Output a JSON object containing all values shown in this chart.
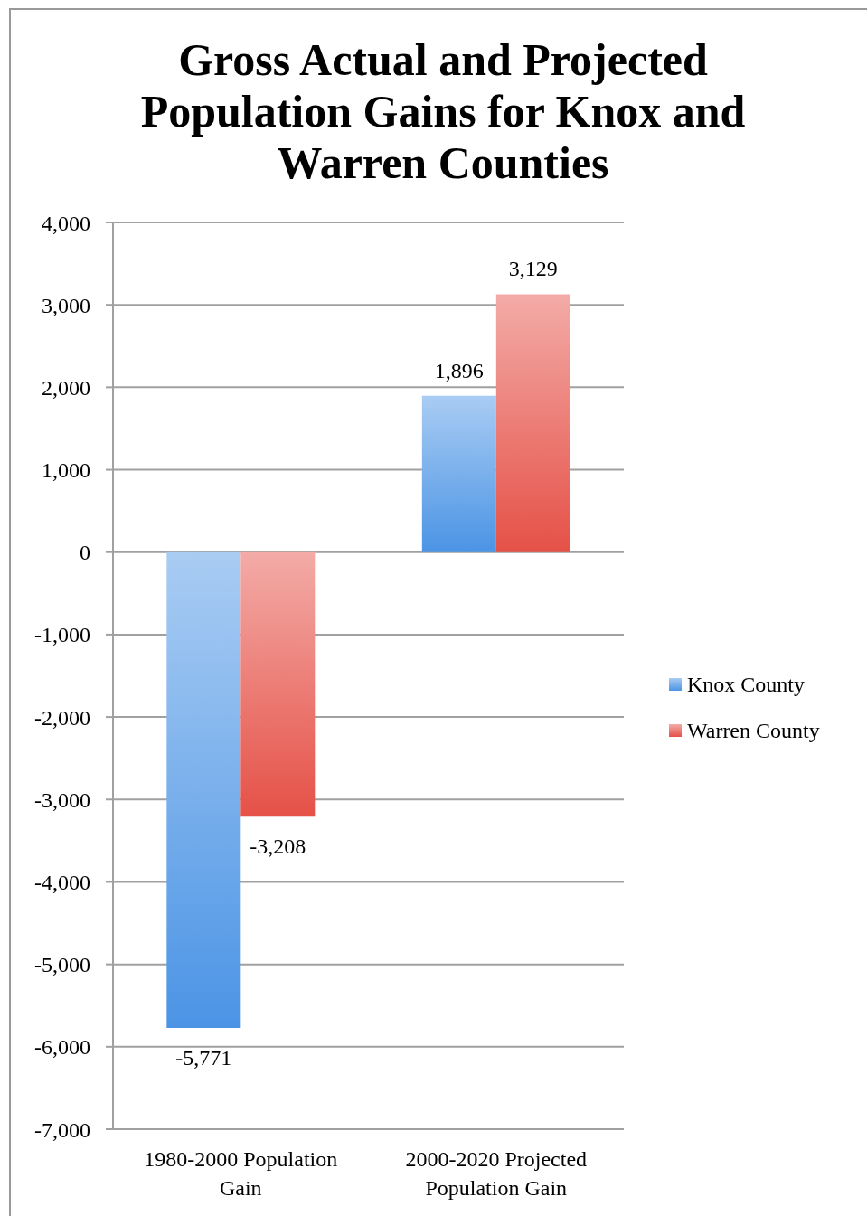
{
  "chart_data": {
    "type": "bar",
    "title": "Gross Actual and Projected Population Gains for Knox and Warren Counties",
    "categories": [
      "1980-2000 Population Gain",
      "2000-2020 Projected Population Gain"
    ],
    "series": [
      {
        "name": "Knox County",
        "color": "#7ab0ec",
        "values": [
          -5771,
          1896
        ],
        "value_labels": [
          "-5,771",
          "1,896"
        ]
      },
      {
        "name": "Warren County",
        "color": "#ec7e77",
        "values": [
          -3208,
          3129
        ],
        "value_labels": [
          "-3,208",
          "3,129"
        ]
      }
    ],
    "ylim": [
      -7000,
      4000
    ],
    "yticks": [
      {
        "value": -7000,
        "label": "-7,000"
      },
      {
        "value": -6000,
        "label": "-6,000"
      },
      {
        "value": -5000,
        "label": "-5,000"
      },
      {
        "value": -4000,
        "label": "-4,000"
      },
      {
        "value": -3000,
        "label": "-3,000"
      },
      {
        "value": -2000,
        "label": "-2,000"
      },
      {
        "value": -1000,
        "label": "-1,000"
      },
      0,
      {
        "value": 1000,
        "label": "1,000"
      },
      {
        "value": 2000,
        "label": "2,000"
      },
      {
        "value": 3000,
        "label": "3,000"
      },
      {
        "value": 4000,
        "label": "4,000"
      }
    ],
    "grid": "y",
    "legend": "right"
  }
}
